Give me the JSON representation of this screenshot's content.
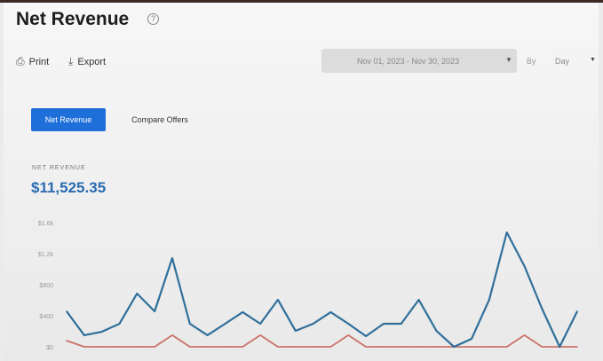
{
  "header": {
    "title": "Net Revenue",
    "help_icon": "question-circle-icon"
  },
  "toolbar": {
    "print_label": "Print",
    "export_label": "Export"
  },
  "filters": {
    "date_range": "Nov 01, 2023 - Nov 30, 2023",
    "by_label": "By",
    "granularity": "Day"
  },
  "tabs": [
    {
      "label": "Net Revenue",
      "active": true
    },
    {
      "label": "Compare Offers",
      "active": false
    }
  ],
  "metric": {
    "label": "NET REVENUE",
    "value": "$11,525.35"
  },
  "colors": {
    "accent": "#1e6fd9",
    "series_primary": "#2f6f9a",
    "series_secondary": "#c9736a"
  },
  "chart_data": {
    "type": "line",
    "x": [
      1,
      2,
      3,
      4,
      5,
      6,
      7,
      8,
      9,
      10,
      11,
      12,
      13,
      14,
      15,
      16,
      17,
      18,
      19,
      20,
      21,
      22,
      23,
      24,
      25,
      26,
      27,
      28,
      29,
      30
    ],
    "ylim": [
      0,
      1600
    ],
    "yticks": [
      "$0",
      "$400",
      "$800",
      "$1.2k",
      "$1.6k"
    ],
    "ytick_values": [
      0,
      400,
      800,
      1200,
      1600
    ],
    "series": [
      {
        "values": [
          457,
          149,
          194,
          297,
          686,
          457,
          1143,
          297,
          149,
          297,
          446,
          297,
          606,
          206,
          297,
          446,
          297,
          137,
          297,
          297,
          606,
          206,
          0,
          103,
          606,
          1474,
          1040,
          490,
          0,
          457
        ]
      },
      {
        "values": [
          80,
          0,
          0,
          0,
          0,
          0,
          150,
          0,
          0,
          0,
          0,
          150,
          0,
          0,
          0,
          0,
          150,
          0,
          0,
          0,
          0,
          0,
          0,
          0,
          0,
          0,
          150,
          0,
          0,
          0
        ]
      }
    ]
  }
}
